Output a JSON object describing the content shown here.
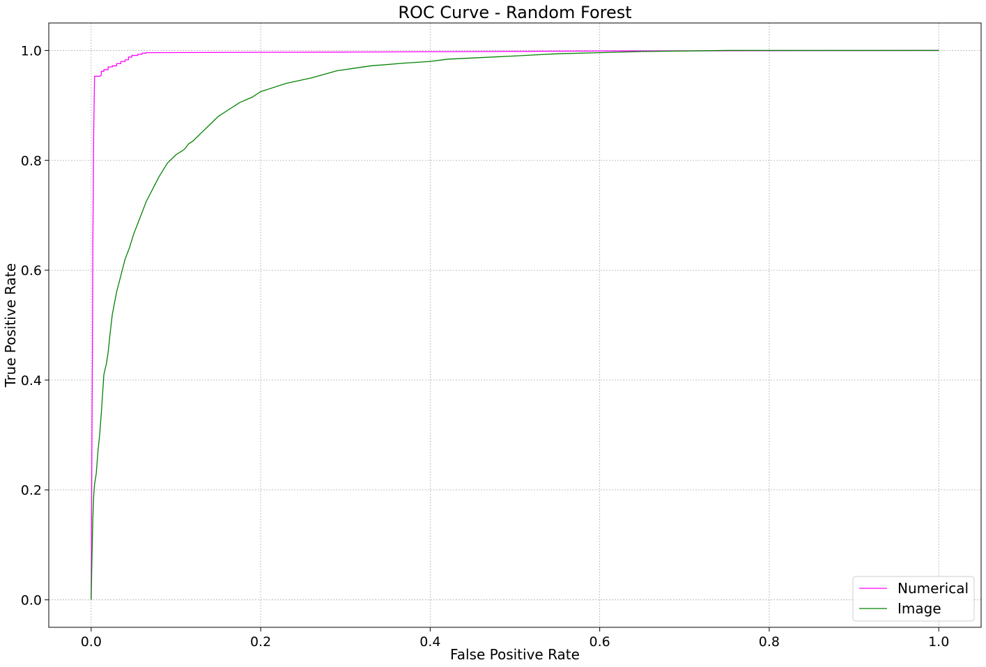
{
  "chart_data": {
    "type": "line",
    "title": "ROC Curve - Random Forest",
    "xlabel": "False Positive Rate",
    "ylabel": "True Positive Rate",
    "xlim": [
      -0.05,
      1.05
    ],
    "ylim": [
      -0.05,
      1.05
    ],
    "xticks": [
      0.0,
      0.2,
      0.4,
      0.6,
      0.8,
      1.0
    ],
    "yticks": [
      0.0,
      0.2,
      0.4,
      0.6,
      0.8,
      1.0
    ],
    "xtick_labels": [
      "0.0",
      "0.2",
      "0.4",
      "0.6",
      "0.8",
      "1.0"
    ],
    "ytick_labels": [
      "0.0",
      "0.2",
      "0.4",
      "0.6",
      "0.8",
      "1.0"
    ],
    "grid": true,
    "legend_position": "lower-right",
    "series": [
      {
        "name": "Numerical",
        "color": "#ff00ff",
        "x": [
          0.0,
          0.0003,
          0.0008,
          0.0015,
          0.002,
          0.003,
          0.004,
          0.004,
          0.01,
          0.012,
          0.012,
          0.015,
          0.015,
          0.02,
          0.02,
          0.025,
          0.025,
          0.03,
          0.03,
          0.035,
          0.035,
          0.04,
          0.04,
          0.044,
          0.044,
          0.048,
          0.048,
          0.055,
          0.055,
          0.06,
          0.06,
          0.065,
          0.065,
          0.3,
          0.6,
          1.0
        ],
        "y": [
          0.0,
          0.1,
          0.25,
          0.45,
          0.65,
          0.85,
          0.95,
          0.953,
          0.953,
          0.955,
          0.962,
          0.962,
          0.965,
          0.965,
          0.97,
          0.97,
          0.972,
          0.972,
          0.976,
          0.976,
          0.98,
          0.98,
          0.983,
          0.983,
          0.988,
          0.988,
          0.991,
          0.991,
          0.993,
          0.993,
          0.995,
          0.995,
          0.996,
          0.997,
          0.999,
          1.0
        ]
      },
      {
        "name": "Image",
        "color": "#008000",
        "x": [
          0.0,
          0.001,
          0.002,
          0.003,
          0.004,
          0.005,
          0.006,
          0.008,
          0.01,
          0.012,
          0.015,
          0.018,
          0.02,
          0.022,
          0.025,
          0.03,
          0.035,
          0.04,
          0.045,
          0.05,
          0.055,
          0.06,
          0.065,
          0.07,
          0.075,
          0.08,
          0.09,
          0.1,
          0.11,
          0.115,
          0.12,
          0.13,
          0.14,
          0.15,
          0.16,
          0.175,
          0.19,
          0.2,
          0.21,
          0.23,
          0.26,
          0.29,
          0.33,
          0.37,
          0.4,
          0.42,
          0.46,
          0.5,
          0.55,
          0.6,
          0.65,
          0.7,
          0.75,
          0.8,
          0.9,
          1.0
        ],
        "y": [
          0.0,
          0.08,
          0.15,
          0.19,
          0.21,
          0.22,
          0.23,
          0.27,
          0.3,
          0.34,
          0.41,
          0.43,
          0.45,
          0.48,
          0.52,
          0.56,
          0.59,
          0.62,
          0.64,
          0.665,
          0.685,
          0.705,
          0.725,
          0.74,
          0.755,
          0.77,
          0.795,
          0.81,
          0.82,
          0.83,
          0.835,
          0.85,
          0.865,
          0.88,
          0.89,
          0.905,
          0.915,
          0.925,
          0.93,
          0.94,
          0.95,
          0.963,
          0.972,
          0.977,
          0.98,
          0.984,
          0.987,
          0.99,
          0.994,
          0.996,
          0.998,
          0.999,
          1.0,
          1.0,
          1.0,
          1.0
        ]
      }
    ]
  }
}
